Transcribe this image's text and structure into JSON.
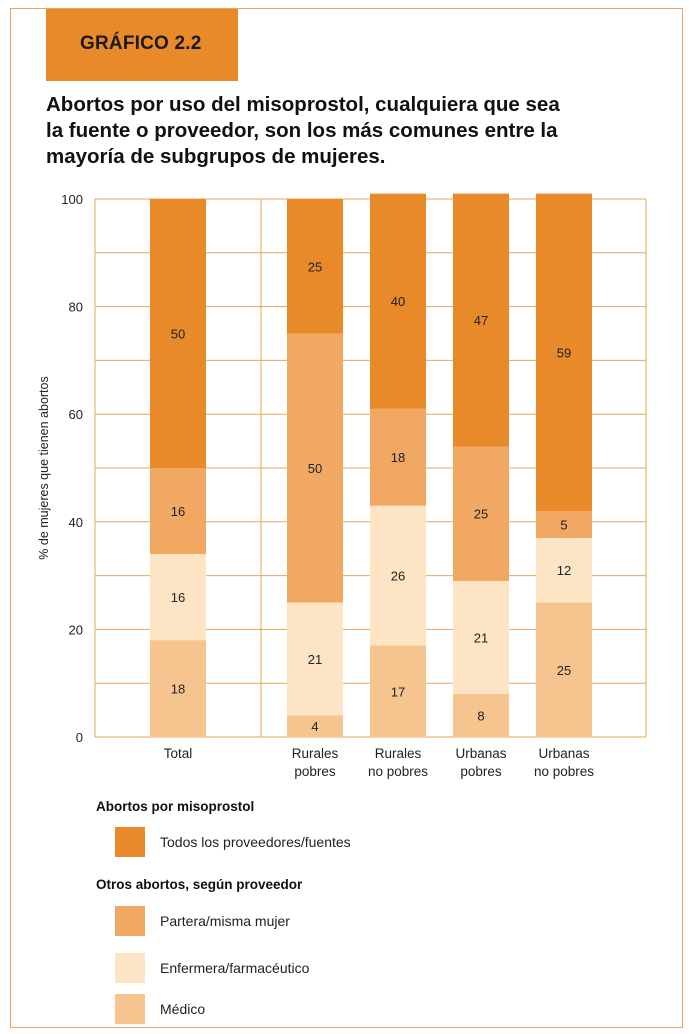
{
  "label": "GRÁFICO 2.2",
  "title_lines": [
    "Abortos por uso del misoprostol, cualquiera que sea",
    "la fuente o proveedor, son los más comunes entre la",
    "mayoría de subgrupos de mujeres."
  ],
  "colors": {
    "accent": "#e8892a",
    "misoprostol": "#e8892a",
    "partera": "#f0a862",
    "enfermera": "#fde4c4",
    "medico": "#f6c48e",
    "grid": "#eaa65a"
  },
  "legend": {
    "group1_title": "Abortos  por misoprostol",
    "group1_items": [
      {
        "label": "Todos los proveedores/fuentes",
        "color": "#e8892a"
      }
    ],
    "group2_title": "Otros abortos, según proveedor",
    "group2_items": [
      {
        "label": "Partera/misma mujer",
        "color": "#f0a862"
      },
      {
        "label": "Enfermera/farmacéutico",
        "color": "#fde4c4"
      },
      {
        "label": "Médico",
        "color": "#f6c48e"
      }
    ]
  },
  "chart_data": {
    "type": "bar",
    "stacked": true,
    "ylabel": "% de mujeres que tienen abortos",
    "ylim": [
      0,
      100
    ],
    "yticks": [
      0,
      20,
      40,
      60,
      80,
      100
    ],
    "grid": true,
    "categories": [
      [
        "Total"
      ],
      [
        "Rurales",
        "pobres"
      ],
      [
        "Rurales",
        "no pobres"
      ],
      [
        "Urbanas",
        "pobres"
      ],
      [
        "Urbanas",
        "no pobres"
      ]
    ],
    "series": [
      {
        "name": "Médico",
        "color": "#f6c48e",
        "values": [
          18,
          4,
          17,
          8,
          25
        ]
      },
      {
        "name": "Enfermera/farmacéutico",
        "color": "#fde4c4",
        "values": [
          16,
          21,
          26,
          21,
          12
        ]
      },
      {
        "name": "Partera/misma mujer",
        "color": "#f0a862",
        "values": [
          16,
          50,
          18,
          25,
          5
        ]
      },
      {
        "name": "Todos los proveedores/fuentes",
        "color": "#e8892a",
        "values": [
          50,
          25,
          40,
          47,
          59
        ]
      }
    ]
  }
}
